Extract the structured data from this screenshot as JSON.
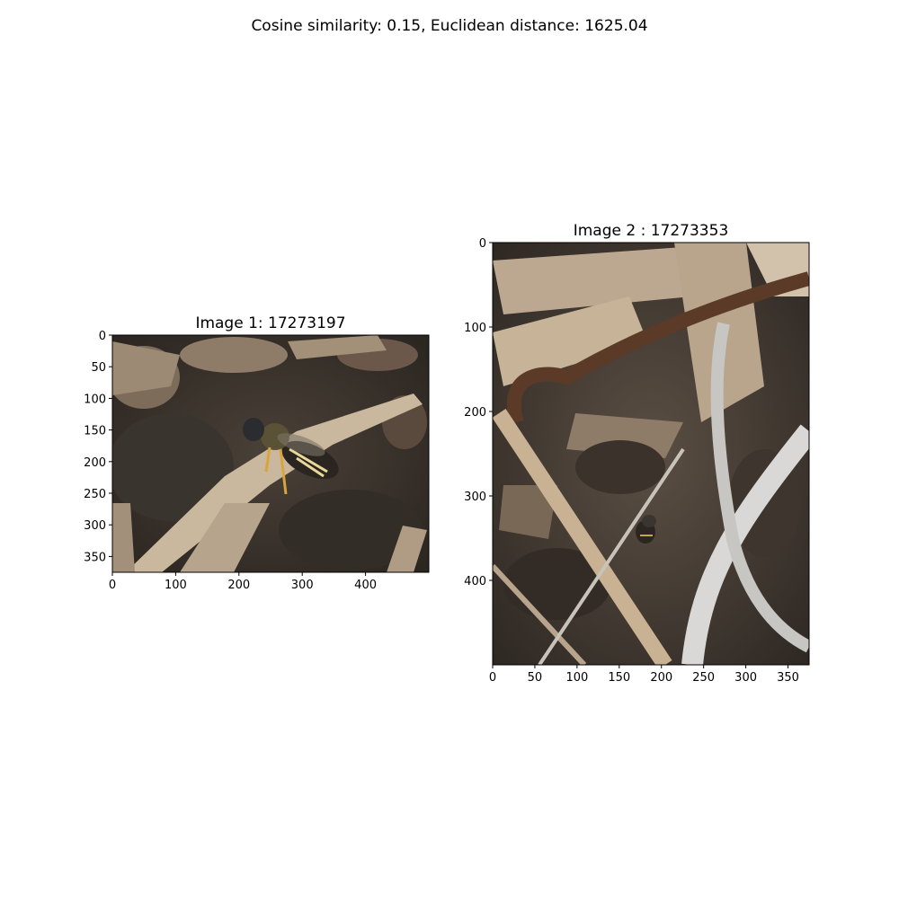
{
  "suptitle": "Cosine similarity: 0.15, Euclidean distance: 1625.04",
  "chart_data": [
    {
      "type": "image",
      "title": "Image 1: 17273197",
      "image_width": 500,
      "image_height": 375,
      "x_ticks": [
        0,
        100,
        200,
        300,
        400
      ],
      "y_ticks": [
        0,
        50,
        100,
        150,
        200,
        250,
        300,
        350
      ],
      "content": "bee-on-wood-chips-and-soil"
    },
    {
      "type": "image",
      "title": "Image 2 : 17273353",
      "image_width": 375,
      "image_height": 500,
      "x_ticks": [
        0,
        50,
        100,
        150,
        200,
        250,
        300,
        350
      ],
      "y_ticks": [
        0,
        100,
        200,
        300,
        400
      ],
      "content": "small-bee-among-dry-stems"
    }
  ]
}
